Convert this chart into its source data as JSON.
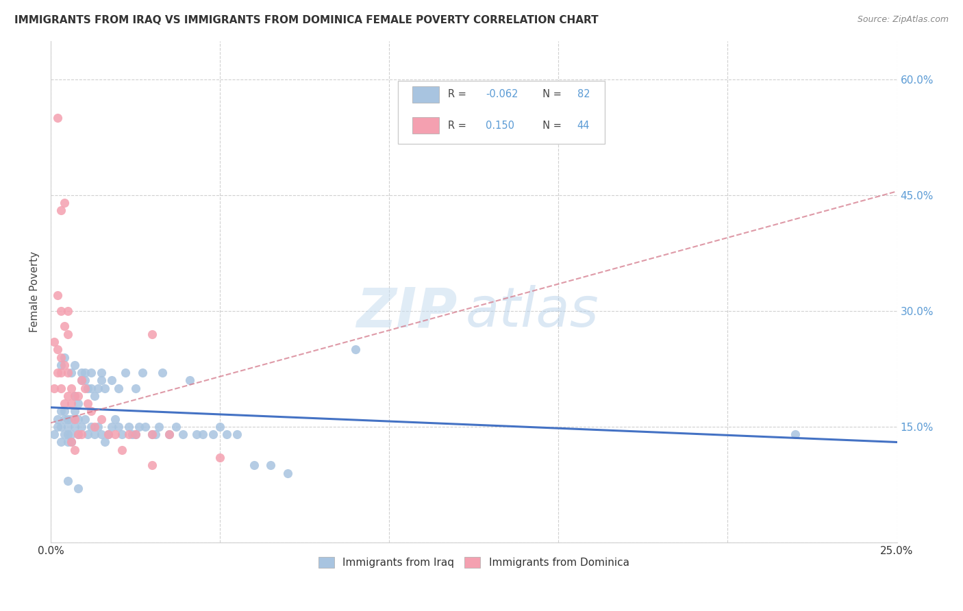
{
  "title": "IMMIGRANTS FROM IRAQ VS IMMIGRANTS FROM DOMINICA FEMALE POVERTY CORRELATION CHART",
  "source": "Source: ZipAtlas.com",
  "ylabel": "Female Poverty",
  "x_min": 0.0,
  "x_max": 0.25,
  "y_min": 0.0,
  "y_max": 0.65,
  "x_ticks": [
    0.0,
    0.05,
    0.1,
    0.15,
    0.2,
    0.25
  ],
  "x_tick_labels": [
    "0.0%",
    "",
    "",
    "",
    "",
    "25.0%"
  ],
  "y_ticks": [
    0.0,
    0.15,
    0.3,
    0.45,
    0.6
  ],
  "y_tick_labels": [
    "",
    "15.0%",
    "30.0%",
    "45.0%",
    "60.0%"
  ],
  "iraq_color": "#a8c4e0",
  "dominica_color": "#f4a0b0",
  "iraq_line_color": "#4472c4",
  "dominica_line_color": "#d4788a",
  "iraq_R": -0.062,
  "iraq_N": 82,
  "dominica_R": 0.15,
  "dominica_N": 44,
  "legend_iraq": "Immigrants from Iraq",
  "legend_dominica": "Immigrants from Dominica",
  "iraq_line_y0": 0.175,
  "iraq_line_y1": 0.13,
  "dominica_line_y0": 0.155,
  "dominica_line_y1": 0.455,
  "iraq_scatter_x": [
    0.001,
    0.002,
    0.002,
    0.003,
    0.003,
    0.003,
    0.004,
    0.004,
    0.004,
    0.005,
    0.005,
    0.005,
    0.005,
    0.006,
    0.006,
    0.006,
    0.007,
    0.007,
    0.007,
    0.008,
    0.008,
    0.008,
    0.009,
    0.009,
    0.01,
    0.01,
    0.011,
    0.011,
    0.012,
    0.012,
    0.013,
    0.013,
    0.014,
    0.014,
    0.015,
    0.015,
    0.016,
    0.016,
    0.017,
    0.018,
    0.018,
    0.019,
    0.02,
    0.021,
    0.022,
    0.023,
    0.024,
    0.025,
    0.026,
    0.027,
    0.028,
    0.03,
    0.031,
    0.032,
    0.033,
    0.035,
    0.037,
    0.039,
    0.041,
    0.043,
    0.045,
    0.048,
    0.05,
    0.052,
    0.055,
    0.06,
    0.065,
    0.07,
    0.005,
    0.008,
    0.003,
    0.004,
    0.006,
    0.007,
    0.009,
    0.01,
    0.012,
    0.015,
    0.02,
    0.025,
    0.09,
    0.22
  ],
  "iraq_scatter_y": [
    0.14,
    0.15,
    0.16,
    0.13,
    0.15,
    0.17,
    0.14,
    0.16,
    0.17,
    0.13,
    0.14,
    0.15,
    0.16,
    0.13,
    0.14,
    0.16,
    0.15,
    0.17,
    0.19,
    0.14,
    0.16,
    0.18,
    0.15,
    0.22,
    0.16,
    0.21,
    0.14,
    0.2,
    0.15,
    0.22,
    0.14,
    0.19,
    0.15,
    0.2,
    0.14,
    0.22,
    0.13,
    0.2,
    0.14,
    0.15,
    0.21,
    0.16,
    0.15,
    0.14,
    0.22,
    0.15,
    0.14,
    0.14,
    0.15,
    0.22,
    0.15,
    0.14,
    0.14,
    0.15,
    0.22,
    0.14,
    0.15,
    0.14,
    0.21,
    0.14,
    0.14,
    0.14,
    0.15,
    0.14,
    0.14,
    0.1,
    0.1,
    0.09,
    0.08,
    0.07,
    0.23,
    0.24,
    0.22,
    0.23,
    0.21,
    0.22,
    0.2,
    0.21,
    0.2,
    0.2,
    0.25,
    0.14
  ],
  "dominica_scatter_x": [
    0.001,
    0.002,
    0.003,
    0.003,
    0.004,
    0.005,
    0.005,
    0.006,
    0.006,
    0.007,
    0.007,
    0.008,
    0.009,
    0.01,
    0.011,
    0.012,
    0.013,
    0.015,
    0.017,
    0.019,
    0.021,
    0.023,
    0.025,
    0.03,
    0.03,
    0.035,
    0.002,
    0.003,
    0.004,
    0.005,
    0.006,
    0.007,
    0.008,
    0.009,
    0.001,
    0.002,
    0.003,
    0.004,
    0.002,
    0.003,
    0.004,
    0.005,
    0.03,
    0.05
  ],
  "dominica_scatter_y": [
    0.2,
    0.22,
    0.2,
    0.22,
    0.18,
    0.19,
    0.22,
    0.18,
    0.2,
    0.16,
    0.19,
    0.19,
    0.21,
    0.2,
    0.18,
    0.17,
    0.15,
    0.16,
    0.14,
    0.14,
    0.12,
    0.14,
    0.14,
    0.27,
    0.14,
    0.14,
    0.55,
    0.43,
    0.44,
    0.3,
    0.13,
    0.12,
    0.14,
    0.14,
    0.26,
    0.25,
    0.24,
    0.23,
    0.32,
    0.3,
    0.28,
    0.27,
    0.1,
    0.11
  ]
}
